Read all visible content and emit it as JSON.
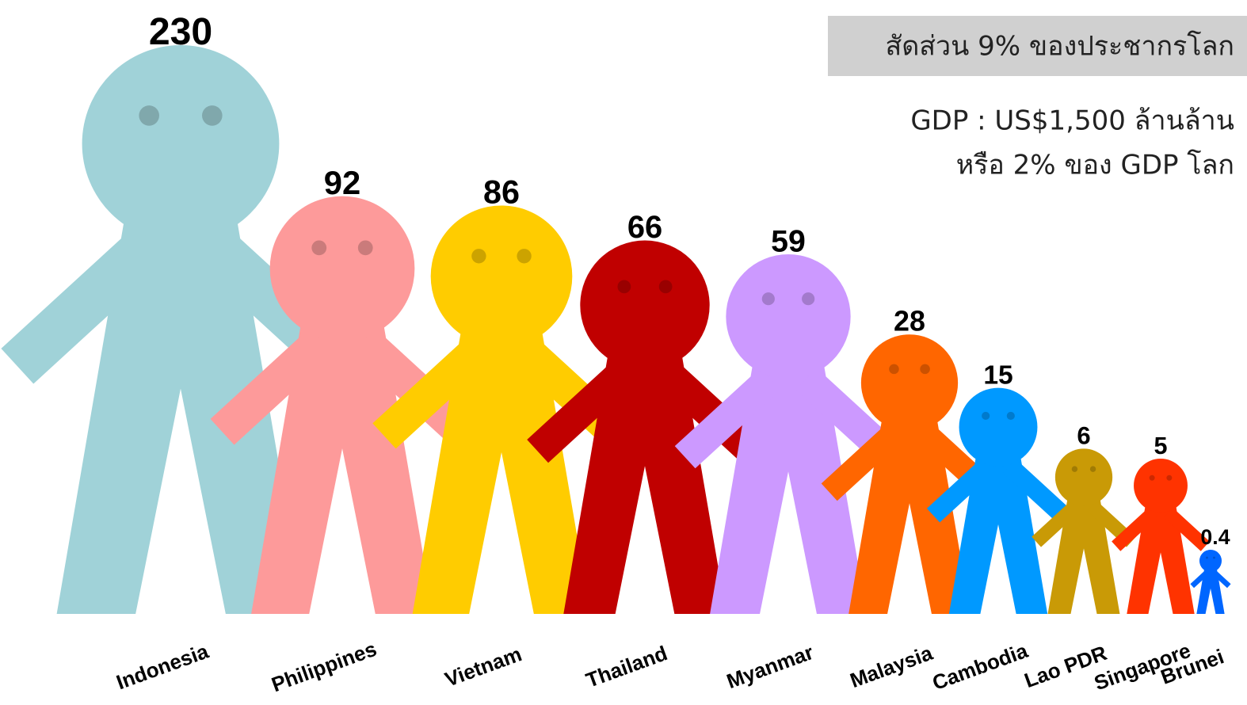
{
  "chart_data": {
    "type": "pictograph",
    "annotations": [
      "สัดส่วน 9% ของประชากรโลก",
      "GDP : US$1,500 ล้านล้าน",
      "หรือ 2% ของ GDP โลก"
    ],
    "categories": [
      "Indonesia",
      "Philippines",
      "Vietnam",
      "Thailand",
      "Myanmar",
      "Malaysia",
      "Cambodia",
      "Lao PDR",
      "Singapore",
      "Brunei"
    ],
    "values": [
      230,
      92,
      86,
      66,
      59,
      28,
      15,
      6,
      5,
      0.4
    ],
    "colors": [
      "#a0d2d8",
      "#fd9a9a",
      "#ffcc00",
      "#c00000",
      "#cc99ff",
      "#ff6600",
      "#0099ff",
      "#c99a06",
      "#ff3300",
      "#0066ff"
    ]
  }
}
